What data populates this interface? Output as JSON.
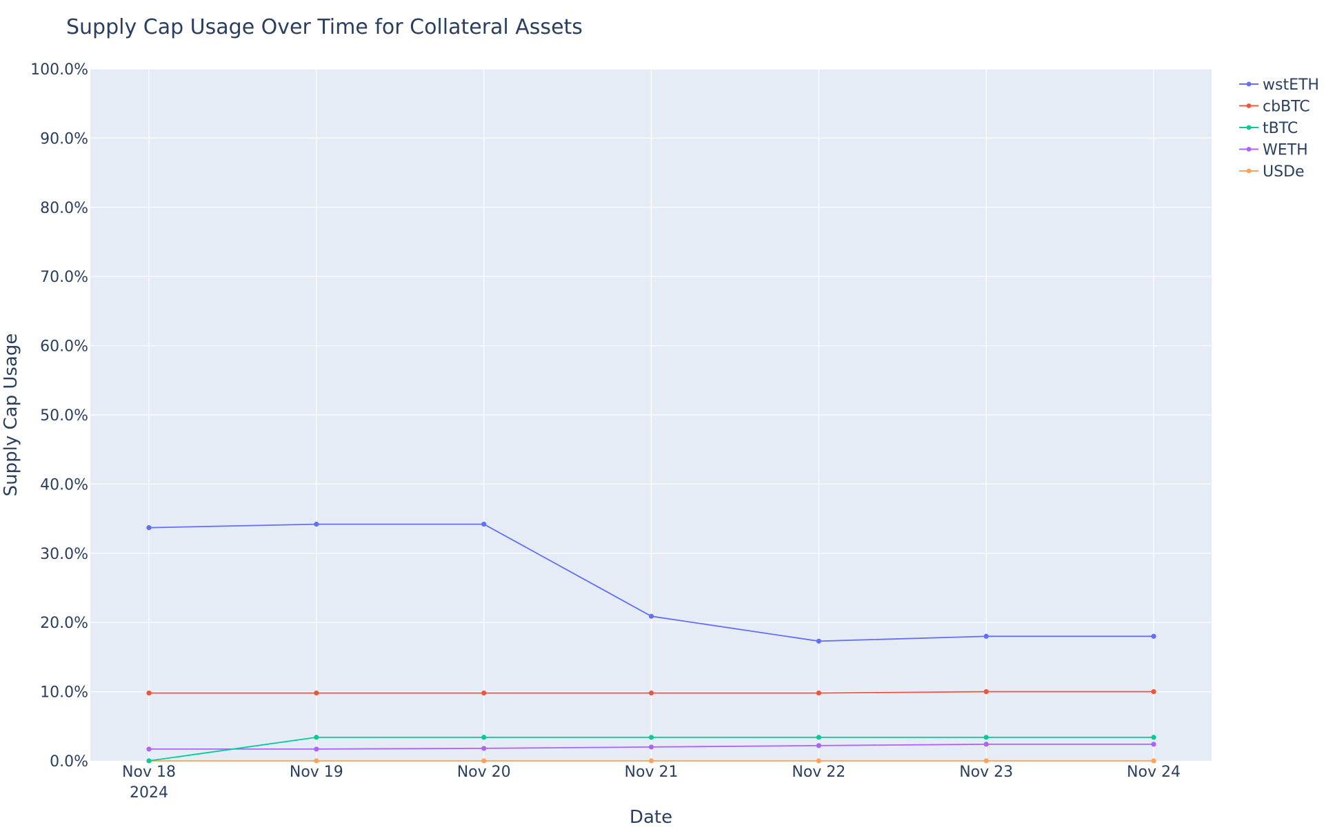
{
  "chart_data": {
    "type": "line",
    "title": "Supply Cap Usage Over Time for Collateral Assets",
    "xlabel": "Date",
    "ylabel": "Supply Cap Usage",
    "x": [
      "2024-11-18",
      "2024-11-19",
      "2024-11-20",
      "2024-11-21",
      "2024-11-22",
      "2024-11-23",
      "2024-11-24"
    ],
    "x_tick_labels": [
      "Nov 18",
      "Nov 19",
      "Nov 20",
      "Nov 21",
      "Nov 22",
      "Nov 23",
      "Nov 24"
    ],
    "x_tick_sublabel": "2024",
    "y_tick_labels": [
      "0.0%",
      "10.0%",
      "20.0%",
      "30.0%",
      "40.0%",
      "50.0%",
      "60.0%",
      "70.0%",
      "80.0%",
      "90.0%",
      "100.0%"
    ],
    "ylim": [
      0,
      100
    ],
    "grid": true,
    "legend_position": "top-right",
    "plot_background": "#e5ecf6",
    "series": [
      {
        "name": "wstETH",
        "color": "#636efa",
        "values": [
          33.7,
          34.2,
          34.2,
          20.9,
          17.3,
          18.0,
          18.0
        ]
      },
      {
        "name": "cbBTC",
        "color": "#ef553b",
        "values": [
          9.8,
          9.8,
          9.8,
          9.8,
          9.8,
          10.0,
          10.0
        ]
      },
      {
        "name": "tBTC",
        "color": "#00cc96",
        "values": [
          0.0,
          3.4,
          3.4,
          3.4,
          3.4,
          3.4,
          3.4
        ]
      },
      {
        "name": "WETH",
        "color": "#ab63fa",
        "values": [
          1.7,
          1.7,
          1.8,
          2.0,
          2.2,
          2.4,
          2.4
        ]
      },
      {
        "name": "USDe",
        "color": "#ffa15a",
        "values": [
          0.0,
          0.0,
          0.0,
          0.0,
          0.0,
          0.0,
          0.0
        ]
      }
    ]
  }
}
